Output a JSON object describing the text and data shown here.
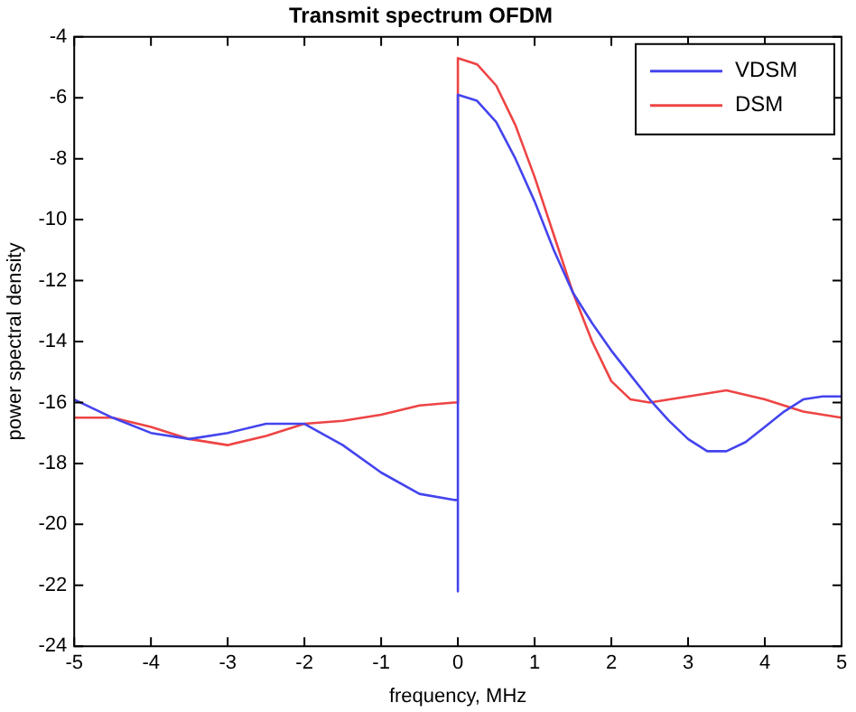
{
  "chart_data": {
    "type": "line",
    "title": "Transmit spectrum OFDM",
    "xlabel": "frequency, MHz",
    "ylabel": "power spectral density",
    "xlim": [
      -5,
      5
    ],
    "xticks": [
      -5,
      -4,
      -3,
      -2,
      -1,
      0,
      1,
      2,
      3,
      4,
      5
    ],
    "ylim": [
      -24,
      -4
    ],
    "yticks": [
      -24,
      -22,
      -20,
      -18,
      -16,
      -14,
      -12,
      -10,
      -8,
      -6,
      -4
    ],
    "grid": false,
    "legend": "top right",
    "marker": "none",
    "line_style": "solid",
    "series": [
      {
        "name": "VDSM",
        "color": "#4444ee",
        "x": [
          -5,
          -4.5,
          -4,
          -3.5,
          -3,
          -2.5,
          -2,
          -1.5,
          -1,
          -0.5,
          -0.05,
          0,
          0,
          0,
          0.25,
          0.5,
          0.75,
          1,
          1.25,
          1.5,
          1.75,
          2,
          2.25,
          2.5,
          2.75,
          3,
          3.25,
          3.5,
          3.75,
          4,
          4.25,
          4.5,
          4.75,
          5
        ],
        "values": [
          -15.9,
          -16.5,
          -17,
          -17.2,
          -17,
          -16.7,
          -16.7,
          -17.4,
          -18.3,
          -19,
          -19.2,
          -19.2,
          -22.2,
          -5.9,
          -6.1,
          -6.8,
          -8,
          -9.4,
          -11,
          -12.4,
          -13.4,
          -14.3,
          -15.1,
          -15.9,
          -16.6,
          -17.2,
          -17.6,
          -17.6,
          -17.3,
          -16.8,
          -16.3,
          -15.9,
          -15.8,
          -15.8
        ]
      },
      {
        "name": "DSM",
        "color": "#ee4444",
        "x": [
          -5,
          -4.5,
          -4,
          -3.5,
          -3,
          -2.5,
          -2,
          -1.5,
          -1,
          -0.5,
          -0.05,
          0,
          0,
          0.25,
          0.5,
          0.75,
          1,
          1.25,
          1.5,
          1.75,
          2,
          2.25,
          2.5,
          3,
          3.5,
          4,
          4.5,
          5
        ],
        "values": [
          -16.5,
          -16.5,
          -16.8,
          -17.2,
          -17.4,
          -17.1,
          -16.7,
          -16.6,
          -16.4,
          -16.1,
          -16,
          -16,
          -4.7,
          -4.9,
          -5.6,
          -6.9,
          -8.6,
          -10.5,
          -12.4,
          -14,
          -15.3,
          -15.9,
          -16,
          -15.8,
          -15.6,
          -15.9,
          -16.3,
          -16.5
        ]
      }
    ]
  }
}
